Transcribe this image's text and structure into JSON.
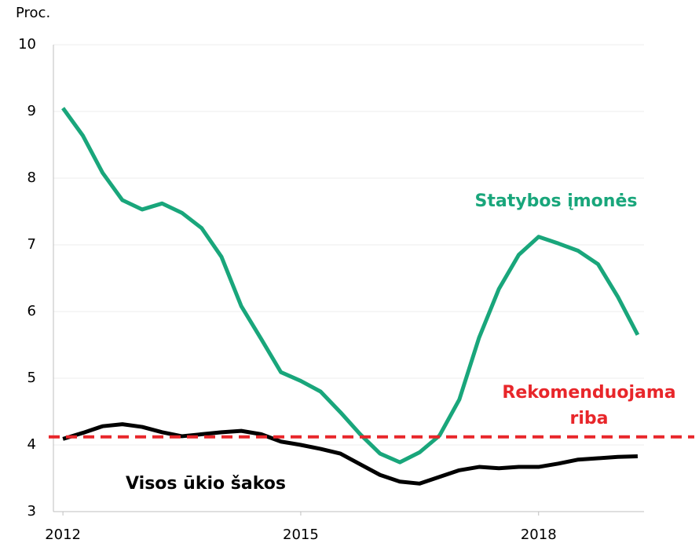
{
  "chart_data": {
    "type": "line",
    "y_unit_label": "Proc.",
    "x": [
      2012,
      2012.25,
      2012.5,
      2012.75,
      2013,
      2013.25,
      2013.5,
      2013.75,
      2014,
      2014.25,
      2014.5,
      2014.75,
      2015,
      2015.25,
      2015.5,
      2015.75,
      2016,
      2016.25,
      2016.5,
      2016.75,
      2017,
      2017.25,
      2017.5,
      2017.75,
      2018,
      2018.25,
      2018.5,
      2018.75,
      2019,
      2019.25
    ],
    "series": [
      {
        "name": "Statybos įmonės",
        "color": "#19a67b",
        "values": [
          9.05,
          8.64,
          8.08,
          7.67,
          7.53,
          7.62,
          7.48,
          7.25,
          6.82,
          6.08,
          5.59,
          5.09,
          4.96,
          4.8,
          4.49,
          4.16,
          3.87,
          3.74,
          3.89,
          4.14,
          4.68,
          5.61,
          6.34,
          6.85,
          7.12,
          7.02,
          6.91,
          6.71,
          6.22,
          5.65
        ]
      },
      {
        "name": "Visos ūkio šakos",
        "color": "#000000",
        "values": [
          4.09,
          4.18,
          4.28,
          4.31,
          4.27,
          4.19,
          4.13,
          4.16,
          4.19,
          4.21,
          4.16,
          4.05,
          4.0,
          3.94,
          3.87,
          3.71,
          3.55,
          3.45,
          3.42,
          3.52,
          3.62,
          3.67,
          3.65,
          3.67,
          3.67,
          3.72,
          3.78,
          3.8,
          3.82,
          3.83
        ]
      }
    ],
    "reference": {
      "value": 4.12,
      "label": [
        "Rekomenduojama",
        "riba"
      ],
      "color": "#e8262a"
    },
    "xlim": [
      2011.88,
      2019.33
    ],
    "xticks": [
      2012,
      2015,
      2018
    ],
    "ylim": [
      3,
      10
    ],
    "yticks": [
      3,
      4,
      5,
      6,
      7,
      8,
      9,
      10
    ],
    "grid": true
  }
}
